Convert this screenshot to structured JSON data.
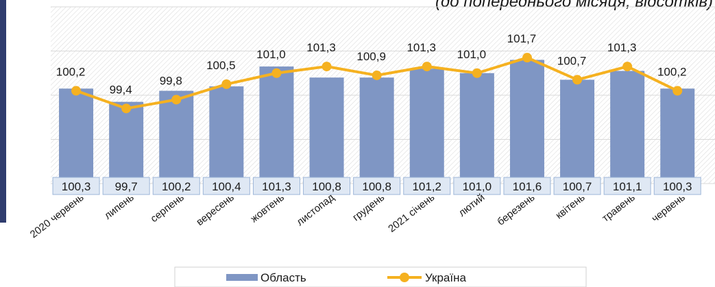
{
  "chart_data": {
    "type": "bar",
    "subtitle": "(до попереднього місяця, відсотків)",
    "categories": [
      "2020 червень",
      "липень",
      "серпень",
      "вересень",
      "жовтень",
      "листопад",
      "грудень",
      "2021 січень",
      "лютий",
      "березень",
      "квітень",
      "травень",
      "червень"
    ],
    "series": [
      {
        "name": "Область",
        "type": "bar",
        "color": "#7f96c4",
        "values": [
          100.3,
          99.7,
          100.2,
          100.4,
          101.3,
          100.8,
          100.8,
          101.2,
          101.0,
          101.6,
          100.7,
          101.1,
          100.3
        ],
        "value_labels": [
          "100,3",
          "99,7",
          "100,2",
          "100,4",
          "101,3",
          "100,8",
          "100,8",
          "101,2",
          "101,0",
          "101,6",
          "100,7",
          "101,1",
          "100,3"
        ]
      },
      {
        "name": "Україна",
        "type": "line",
        "color": "#f5b120",
        "values": [
          100.2,
          99.4,
          99.8,
          100.5,
          101.0,
          101.3,
          100.9,
          101.3,
          101.0,
          101.7,
          100.7,
          101.3,
          100.2
        ],
        "value_labels": [
          "100,2",
          "99,4",
          "99,8",
          "100,5",
          "101,0",
          "101,3",
          "100,9",
          "101,3",
          "101,0",
          "101,7",
          "100,7",
          "101,3",
          "100,2"
        ]
      }
    ],
    "ylim": [
      96,
      104
    ],
    "yticks": [
      96,
      98,
      100,
      102,
      104
    ],
    "grid": true,
    "legend": "bottom"
  }
}
